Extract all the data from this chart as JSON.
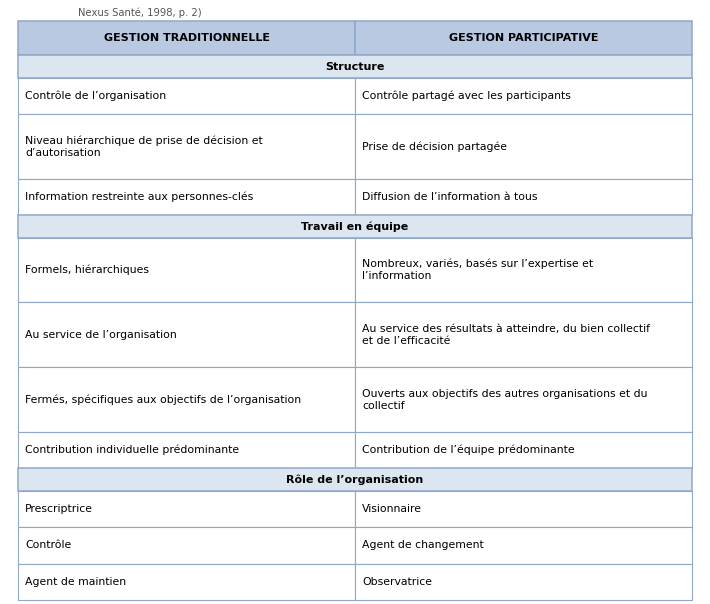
{
  "title_subtitle": "Nexus Santé, 1998, p. 2)",
  "col1_header": "GESTION TRADITIONNELLE",
  "col2_header": "GESTION PARTICIPATIVE",
  "header_bg": "#b8c9e1",
  "section_bg": "#dce6f1",
  "row_bg": "#ffffff",
  "border_color": "#8fa8c8",
  "sections": [
    {
      "section_title": "Structure",
      "rows": [
        [
          "Contrôle de l’organisation",
          "Contrôle partagé avec les participants",
          1,
          1
        ],
        [
          "Niveau hiérarchique de prise de décision et\nd’autorisation",
          "Prise de décision partagée",
          2,
          1
        ],
        [
          "Information restreinte aux personnes-clés",
          "Diffusion de l’information à tous",
          1,
          1
        ]
      ]
    },
    {
      "section_title": "Travail en équipe",
      "rows": [
        [
          "Formels, hiérarchiques",
          "Nombreux, variés, basés sur l’expertise et\nl’information",
          1,
          2
        ],
        [
          "Au service de l’organisation",
          "Au service des résultats à atteindre, du bien collectif\net de l’efficacité",
          1,
          2
        ],
        [
          "Fermés, spécifiques aux objectifs de l’organisation",
          "Ouverts aux objectifs des autres organisations et du\ncollectif",
          1,
          2
        ],
        [
          "Contribution individuelle prédominante",
          "Contribution de l’équipe prédominante",
          1,
          1
        ]
      ]
    },
    {
      "section_title": "Rôle de l’organisation",
      "rows": [
        [
          "Prescriptrice",
          "Visionnaire",
          1,
          1
        ],
        [
          "Contrôle",
          "Agent de changement",
          1,
          1
        ],
        [
          "Agent de maintien",
          "Observatrice",
          1,
          1
        ]
      ]
    }
  ]
}
